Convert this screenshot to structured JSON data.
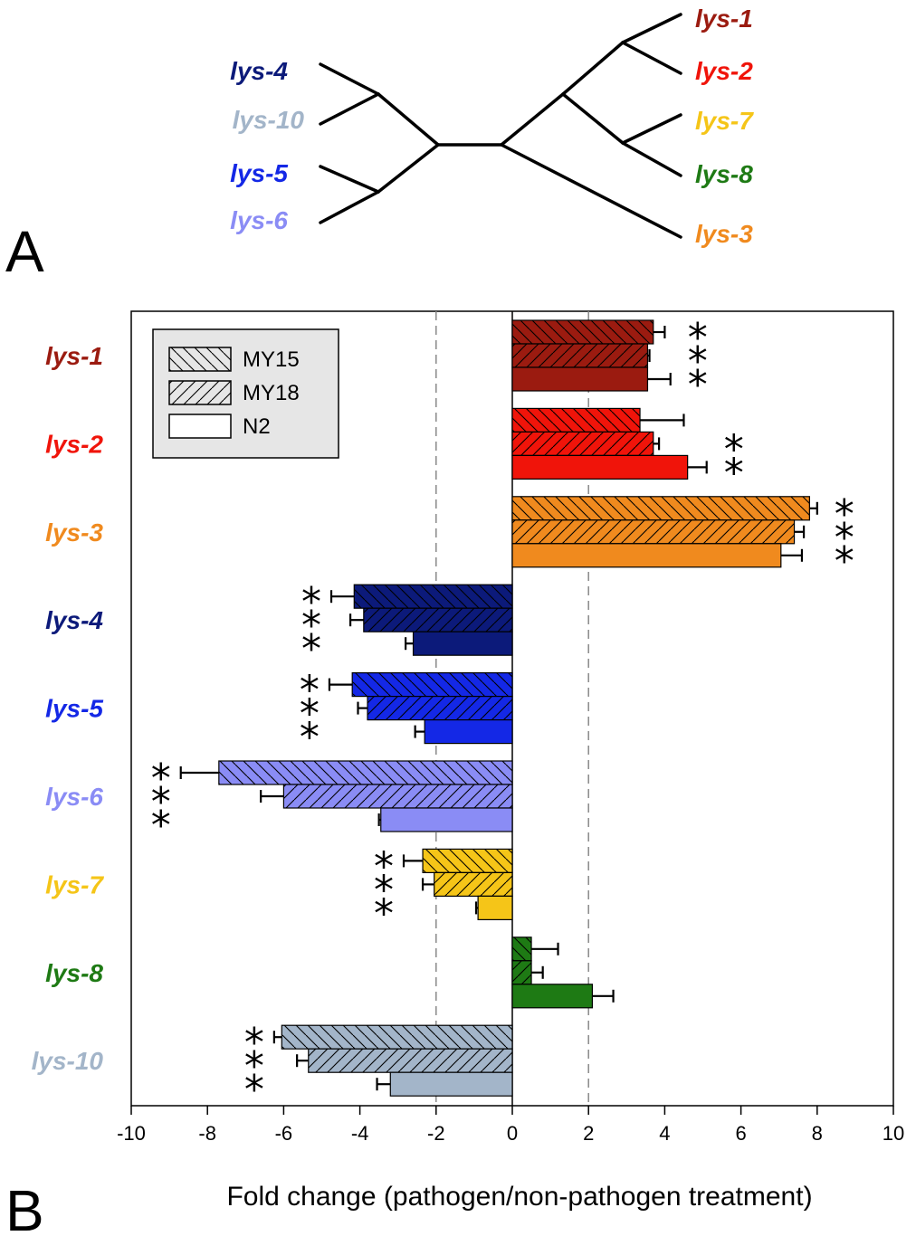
{
  "panels": {
    "a_label": "A",
    "b_label": "B"
  },
  "tree": {
    "leaves": [
      {
        "name": "lys-1",
        "color": "#9b1b10"
      },
      {
        "name": "lys-2",
        "color": "#f0140a"
      },
      {
        "name": "lys-7",
        "color": "#f5c518"
      },
      {
        "name": "lys-8",
        "color": "#1e7a14"
      },
      {
        "name": "lys-3",
        "color": "#f08a1e"
      },
      {
        "name": "lys-4",
        "color": "#0c1a7a"
      },
      {
        "name": "lys-10",
        "color": "#a3b5c9"
      },
      {
        "name": "lys-5",
        "color": "#1428e6"
      },
      {
        "name": "lys-6",
        "color": "#8a8cf5"
      }
    ]
  },
  "chart_data": {
    "type": "bar",
    "orientation": "horizontal",
    "xlabel": "Fold change (pathogen/non-pathogen treatment)",
    "xlim": [
      -10,
      10
    ],
    "xticks": [
      "-10",
      "-8",
      "-6",
      "-4",
      "-2",
      "0",
      "2",
      "4",
      "6",
      "8",
      "10"
    ],
    "reference_lines": [
      -2,
      2
    ],
    "legend": {
      "position": "top-left",
      "entries": [
        {
          "name": "MY15",
          "pattern": "backslash-hatch"
        },
        {
          "name": "MY18",
          "pattern": "slash-hatch"
        },
        {
          "name": "N2",
          "pattern": "solid"
        }
      ]
    },
    "categories": [
      {
        "name": "lys-1",
        "color": "#9b1b10",
        "values": [
          3.7,
          3.55,
          3.55
        ],
        "errors": [
          0.3,
          0.05,
          0.6
        ],
        "significance": [
          "*",
          "*",
          "*"
        ]
      },
      {
        "name": "lys-2",
        "color": "#f0140a",
        "values": [
          3.35,
          3.7,
          4.6
        ],
        "errors": [
          1.15,
          0.15,
          0.5
        ],
        "significance": [
          "",
          "*",
          "*"
        ]
      },
      {
        "name": "lys-3",
        "color": "#f08a1e",
        "values": [
          7.8,
          7.4,
          7.05
        ],
        "errors": [
          0.2,
          0.25,
          0.55
        ],
        "significance": [
          "*",
          "*",
          "*"
        ]
      },
      {
        "name": "lys-4",
        "color": "#0c1a7a",
        "values": [
          -4.15,
          -3.9,
          -2.6
        ],
        "errors": [
          0.6,
          0.35,
          0.2
        ],
        "significance": [
          "*",
          "*",
          "*"
        ]
      },
      {
        "name": "lys-5",
        "color": "#1428e6",
        "values": [
          -4.2,
          -3.8,
          -2.3
        ],
        "errors": [
          0.6,
          0.25,
          0.25
        ],
        "significance": [
          "*",
          "*",
          "*"
        ]
      },
      {
        "name": "lys-6",
        "color": "#8a8cf5",
        "values": [
          -7.7,
          -6.0,
          -3.45
        ],
        "errors": [
          1.0,
          0.6,
          0.05
        ],
        "significance": [
          "*",
          "*",
          "*"
        ]
      },
      {
        "name": "lys-7",
        "color": "#f5c518",
        "values": [
          -2.35,
          -2.05,
          -0.9
        ],
        "errors": [
          0.5,
          0.3,
          0.05
        ],
        "significance": [
          "*",
          "*",
          "*"
        ]
      },
      {
        "name": "lys-8",
        "color": "#1e7a14",
        "values": [
          0.5,
          0.5,
          2.1
        ],
        "errors": [
          0.7,
          0.3,
          0.55
        ],
        "significance": [
          "",
          "",
          ""
        ]
      },
      {
        "name": "lys-10",
        "color": "#a3b5c9",
        "values": [
          -6.05,
          -5.35,
          -3.2
        ],
        "errors": [
          0.2,
          0.3,
          0.35
        ],
        "significance": [
          "*",
          "*",
          "*"
        ]
      }
    ]
  }
}
